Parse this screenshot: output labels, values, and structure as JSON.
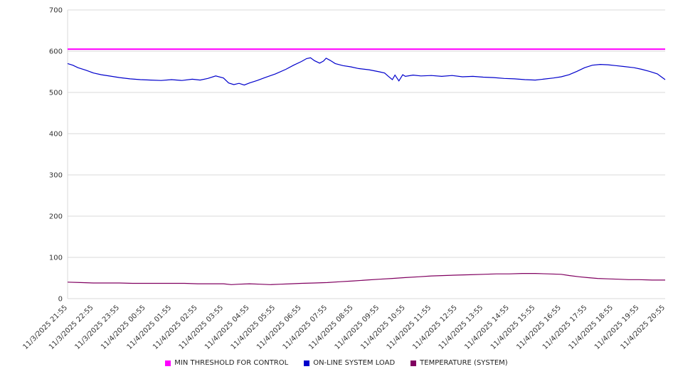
{
  "chart_data": {
    "type": "line",
    "title": "",
    "xlabel": "",
    "ylabel": "",
    "ylim": [
      0,
      700
    ],
    "y_ticks": [
      0,
      100,
      200,
      300,
      400,
      500,
      600,
      700
    ],
    "grid": "horizontal",
    "legend_position": "bottom",
    "x_hours_span": 23,
    "x_tick_labels": [
      "11/3/2025 21:55",
      "11/3/2025 22:55",
      "11/3/2025 23:55",
      "11/4/2025 00:55",
      "11/4/2025 01:55",
      "11/4/2025 02:55",
      "11/4/2025 03:55",
      "11/4/2025 04:55",
      "11/4/2025 05:55",
      "11/4/2025 06:55",
      "11/4/2025 07:55",
      "11/4/2025 08:55",
      "11/4/2025 09:55",
      "11/4/2025 10:55",
      "11/4/2025 11:55",
      "11/4/2025 12:55",
      "11/4/2025 13:55",
      "11/4/2025 14:55",
      "11/4/2025 15:55",
      "11/4/2025 16:55",
      "11/4/2025 17:55",
      "11/4/2025 18:55",
      "11/4/2025 19:55",
      "11/4/2025 20:55"
    ],
    "series": [
      {
        "name": "MIN THRESHOLD FOR CONTROL",
        "color": "#ff00ff",
        "width": 2,
        "points": [
          [
            0,
            605
          ],
          [
            23,
            605
          ]
        ]
      },
      {
        "name": "ON-LINE SYSTEM LOAD",
        "color": "#0000cc",
        "width": 1.2,
        "points": [
          [
            0,
            570
          ],
          [
            0.2,
            566
          ],
          [
            0.4,
            560
          ],
          [
            0.7,
            554
          ],
          [
            1,
            547
          ],
          [
            1.3,
            543
          ],
          [
            1.7,
            539
          ],
          [
            2,
            536
          ],
          [
            2.4,
            533
          ],
          [
            2.8,
            531
          ],
          [
            3.2,
            530
          ],
          [
            3.6,
            529
          ],
          [
            4,
            531
          ],
          [
            4.4,
            529
          ],
          [
            4.8,
            532
          ],
          [
            5.1,
            530
          ],
          [
            5.4,
            534
          ],
          [
            5.7,
            540
          ],
          [
            6,
            535
          ],
          [
            6.2,
            523
          ],
          [
            6.4,
            519
          ],
          [
            6.6,
            522
          ],
          [
            6.8,
            518
          ],
          [
            7,
            523
          ],
          [
            7.3,
            529
          ],
          [
            7.6,
            536
          ],
          [
            8,
            545
          ],
          [
            8.4,
            556
          ],
          [
            8.7,
            566
          ],
          [
            9,
            575
          ],
          [
            9.2,
            582
          ],
          [
            9.35,
            584
          ],
          [
            9.5,
            577
          ],
          [
            9.7,
            571
          ],
          [
            9.85,
            576
          ],
          [
            9.95,
            583
          ],
          [
            10.1,
            578
          ],
          [
            10.3,
            570
          ],
          [
            10.6,
            565
          ],
          [
            10.9,
            562
          ],
          [
            11.2,
            558
          ],
          [
            11.6,
            555
          ],
          [
            12,
            550
          ],
          [
            12.2,
            547
          ],
          [
            12.35,
            539
          ],
          [
            12.5,
            531
          ],
          [
            12.6,
            542
          ],
          [
            12.75,
            528
          ],
          [
            12.9,
            543
          ],
          [
            13,
            539
          ],
          [
            13.3,
            542
          ],
          [
            13.6,
            540
          ],
          [
            14,
            541
          ],
          [
            14.4,
            539
          ],
          [
            14.8,
            541
          ],
          [
            15.2,
            538
          ],
          [
            15.6,
            539
          ],
          [
            16,
            537
          ],
          [
            16.4,
            536
          ],
          [
            16.8,
            534
          ],
          [
            17.2,
            533
          ],
          [
            17.6,
            531
          ],
          [
            18,
            530
          ],
          [
            18.3,
            532
          ],
          [
            18.7,
            535
          ],
          [
            19,
            538
          ],
          [
            19.3,
            543
          ],
          [
            19.6,
            551
          ],
          [
            19.9,
            560
          ],
          [
            20.2,
            566
          ],
          [
            20.5,
            568
          ],
          [
            20.8,
            567
          ],
          [
            21.1,
            565
          ],
          [
            21.4,
            563
          ],
          [
            21.8,
            560
          ],
          [
            22.1,
            556
          ],
          [
            22.4,
            551
          ],
          [
            22.7,
            545
          ],
          [
            22.85,
            538
          ],
          [
            23,
            531
          ]
        ]
      },
      {
        "name": "TEMPERATURE (SYSTEM)",
        "color": "#800060",
        "width": 1.2,
        "points": [
          [
            0,
            40
          ],
          [
            0.5,
            39
          ],
          [
            1,
            38
          ],
          [
            1.5,
            38
          ],
          [
            2,
            38
          ],
          [
            2.5,
            37
          ],
          [
            3,
            37
          ],
          [
            3.5,
            37
          ],
          [
            4,
            37
          ],
          [
            4.5,
            37
          ],
          [
            5,
            36
          ],
          [
            5.5,
            36
          ],
          [
            6,
            36
          ],
          [
            6.3,
            34
          ],
          [
            6.6,
            35
          ],
          [
            7,
            36
          ],
          [
            7.4,
            35
          ],
          [
            7.8,
            34
          ],
          [
            8.2,
            35
          ],
          [
            8.6,
            36
          ],
          [
            9,
            37
          ],
          [
            9.5,
            38
          ],
          [
            10,
            39
          ],
          [
            10.5,
            41
          ],
          [
            11,
            43
          ],
          [
            11.5,
            45
          ],
          [
            12,
            47
          ],
          [
            12.5,
            49
          ],
          [
            13,
            51
          ],
          [
            13.5,
            53
          ],
          [
            14,
            55
          ],
          [
            14.5,
            56
          ],
          [
            15,
            57
          ],
          [
            15.5,
            58
          ],
          [
            16,
            59
          ],
          [
            16.5,
            60
          ],
          [
            17,
            60
          ],
          [
            17.5,
            61
          ],
          [
            18,
            61
          ],
          [
            18.5,
            60
          ],
          [
            19,
            59
          ],
          [
            19.3,
            56
          ],
          [
            19.7,
            53
          ],
          [
            20,
            51
          ],
          [
            20.4,
            49
          ],
          [
            20.8,
            48
          ],
          [
            21.2,
            47
          ],
          [
            21.6,
            46
          ],
          [
            22,
            46
          ],
          [
            22.5,
            45
          ],
          [
            23,
            45
          ]
        ]
      }
    ],
    "legend": {
      "items": [
        {
          "label": "MIN THRESHOLD FOR CONTROL"
        },
        {
          "label": "ON-LINE SYSTEM LOAD"
        },
        {
          "label": "TEMPERATURE (SYSTEM)"
        }
      ]
    }
  }
}
